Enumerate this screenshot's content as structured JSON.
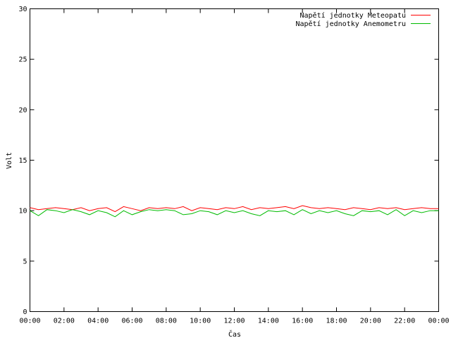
{
  "chart_data": {
    "type": "line",
    "xlabel": "Čas",
    "ylabel": "Volt",
    "xlim": [
      "00:00",
      "24:00"
    ],
    "ylim": [
      0,
      30
    ],
    "x_tick_labels": [
      "00:00",
      "02:00",
      "04:00",
      "06:00",
      "08:00",
      "10:00",
      "12:00",
      "14:00",
      "16:00",
      "18:00",
      "20:00",
      "22:00",
      "00:00"
    ],
    "y_tick_labels": [
      "0",
      "5",
      "10",
      "15",
      "20",
      "25",
      "30"
    ],
    "y_ticks": [
      0,
      5,
      10,
      15,
      20,
      25,
      30
    ],
    "grid": false,
    "legend_position": "top-right",
    "series": [
      {
        "name": "Napětí jednotky Meteopatu",
        "color": "#ff0000",
        "x_hours": [
          0,
          0.5,
          1,
          1.5,
          2,
          2.5,
          3,
          3.5,
          4,
          4.5,
          5,
          5.5,
          6,
          6.5,
          7,
          7.5,
          8,
          8.5,
          9,
          9.5,
          10,
          10.5,
          11,
          11.5,
          12,
          12.5,
          13,
          13.5,
          14,
          14.5,
          15,
          15.5,
          16,
          16.5,
          17,
          17.5,
          18,
          18.5,
          19,
          19.5,
          20,
          20.5,
          21,
          21.5,
          22,
          22.5,
          23,
          23.5,
          24
        ],
        "values": [
          10.3,
          10.1,
          10.2,
          10.3,
          10.2,
          10.1,
          10.3,
          10.0,
          10.2,
          10.3,
          9.9,
          10.4,
          10.2,
          10.0,
          10.3,
          10.2,
          10.3,
          10.2,
          10.4,
          10.0,
          10.3,
          10.2,
          10.1,
          10.3,
          10.2,
          10.4,
          10.1,
          10.3,
          10.2,
          10.3,
          10.4,
          10.2,
          10.5,
          10.3,
          10.2,
          10.3,
          10.2,
          10.1,
          10.3,
          10.2,
          10.1,
          10.3,
          10.2,
          10.3,
          10.1,
          10.2,
          10.3,
          10.2,
          10.2
        ]
      },
      {
        "name": "Napětí jednotky Anemometru",
        "color": "#00bb00",
        "x_hours": [
          0,
          0.5,
          1,
          1.5,
          2,
          2.5,
          3,
          3.5,
          4,
          4.5,
          5,
          5.5,
          6,
          6.5,
          7,
          7.5,
          8,
          8.5,
          9,
          9.5,
          10,
          10.5,
          11,
          11.5,
          12,
          12.5,
          13,
          13.5,
          14,
          14.5,
          15,
          15.5,
          16,
          16.5,
          17,
          17.5,
          18,
          18.5,
          19,
          19.5,
          20,
          20.5,
          21,
          21.5,
          22,
          22.5,
          23,
          23.5,
          24
        ],
        "values": [
          10.0,
          9.5,
          10.1,
          10.0,
          9.8,
          10.1,
          9.9,
          9.6,
          10.0,
          9.8,
          9.4,
          10.0,
          9.6,
          9.9,
          10.1,
          10.0,
          10.1,
          10.0,
          9.6,
          9.7,
          10.0,
          9.9,
          9.6,
          10.0,
          9.8,
          10.0,
          9.7,
          9.5,
          10.0,
          9.9,
          10.0,
          9.6,
          10.1,
          9.7,
          10.0,
          9.8,
          10.0,
          9.7,
          9.5,
          10.0,
          9.9,
          10.0,
          9.6,
          10.1,
          9.5,
          10.0,
          9.8,
          10.0,
          10.0
        ]
      }
    ]
  }
}
